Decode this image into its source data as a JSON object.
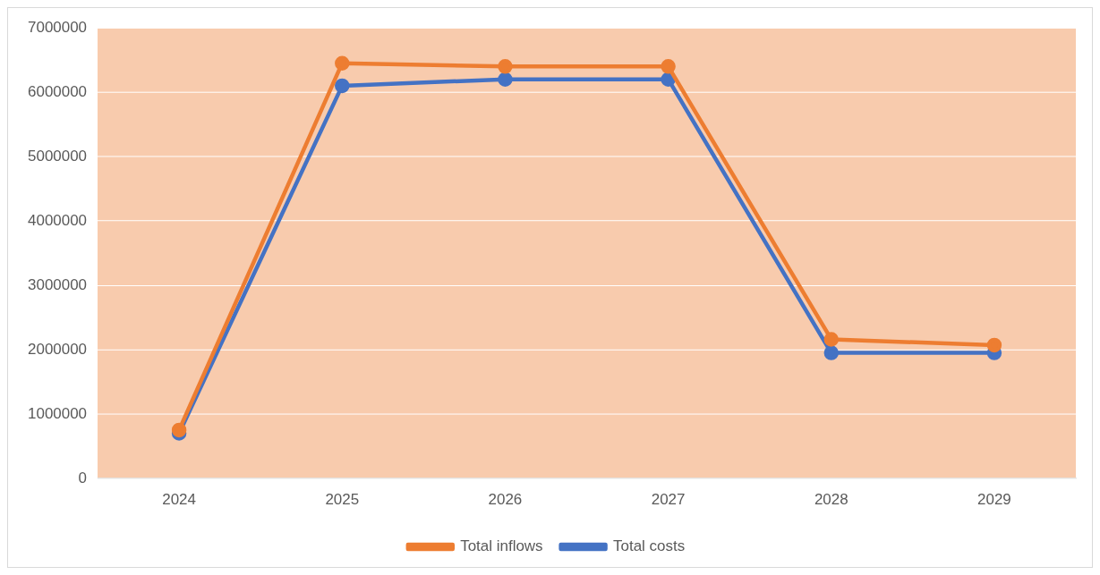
{
  "chart_data": {
    "type": "line",
    "categories": [
      "2024",
      "2025",
      "2026",
      "2027",
      "2028",
      "2029"
    ],
    "series": [
      {
        "name": "Total costs",
        "color": "#4472c4",
        "values": [
          700000,
          6100000,
          6200000,
          6200000,
          1950000,
          1950000
        ]
      },
      {
        "name": "Total inflows",
        "color": "#ed7d31",
        "values": [
          750000,
          6450000,
          6400000,
          6400000,
          2160000,
          2070000
        ]
      }
    ],
    "ylim": [
      0,
      7000000
    ],
    "yticks": [
      0,
      1000000,
      2000000,
      3000000,
      4000000,
      5000000,
      6000000,
      7000000
    ],
    "grid": "y",
    "legend": "bottom",
    "marker": "circle",
    "line_style": "solid"
  }
}
